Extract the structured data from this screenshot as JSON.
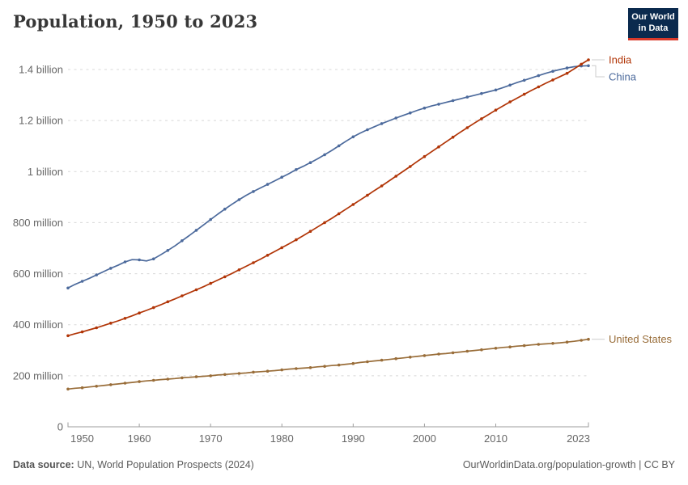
{
  "header": {
    "title": "Population, 1950 to 2023",
    "logo": {
      "line1": "Our World",
      "line2": "in Data",
      "bg_color": "#0b2a4e",
      "bar_color": "#d93a2b"
    }
  },
  "footer": {
    "source_label": "Data source:",
    "source_rest": " UN, World Population Prospects (2024)",
    "attribution": "OurWorldinData.org/population-growth | CC BY"
  },
  "chart_data": {
    "type": "line",
    "title": "Population, 1950 to 2023",
    "unit": "people (millions)",
    "x_start": 1950,
    "x_end": 2023,
    "x_interval": 1,
    "x_ticks": [
      1950,
      1960,
      1970,
      1980,
      1990,
      2000,
      2010,
      2023
    ],
    "y_ticks": [
      {
        "value": 0,
        "label": "0"
      },
      {
        "value": 200,
        "label": "200 million"
      },
      {
        "value": 400,
        "label": "400 million"
      },
      {
        "value": 600,
        "label": "600 million"
      },
      {
        "value": 800,
        "label": "800 million"
      },
      {
        "value": 1000,
        "label": "1 billion"
      },
      {
        "value": 1200,
        "label": "1.2 billion"
      },
      {
        "value": 1400,
        "label": "1.4 billion"
      }
    ],
    "ylim": [
      0,
      1450
    ],
    "grid": "dashed-horizontal",
    "legend_position": "right-of-line-ends",
    "series": [
      {
        "name": "India",
        "color": "#b13507",
        "values": [
          357,
          365,
          372,
          380,
          388,
          397,
          406,
          415,
          425,
          435,
          446,
          456,
          467,
          478,
          490,
          501,
          513,
          525,
          537,
          549,
          562,
          575,
          588,
          601,
          615,
          629,
          643,
          657,
          672,
          687,
          702,
          717,
          733,
          749,
          766,
          783,
          800,
          817,
          835,
          853,
          871,
          889,
          907,
          926,
          944,
          963,
          982,
          1001,
          1020,
          1040,
          1059,
          1078,
          1097,
          1116,
          1135,
          1154,
          1172,
          1190,
          1207,
          1224,
          1241,
          1257,
          1273,
          1288,
          1303,
          1318,
          1332,
          1346,
          1359,
          1372,
          1385,
          1403,
          1421,
          1438
        ]
      },
      {
        "name": "China",
        "color": "#4c6a9c",
        "values": [
          544,
          558,
          570,
          582,
          595,
          608,
          621,
          633,
          646,
          655,
          654,
          650,
          658,
          674,
          691,
          709,
          729,
          749,
          770,
          791,
          812,
          833,
          853,
          872,
          890,
          907,
          922,
          936,
          950,
          964,
          978,
          992,
          1008,
          1021,
          1035,
          1050,
          1066,
          1083,
          1101,
          1119,
          1136,
          1151,
          1164,
          1176,
          1188,
          1199,
          1210,
          1220,
          1230,
          1240,
          1249,
          1257,
          1264,
          1271,
          1278,
          1285,
          1292,
          1299,
          1306,
          1313,
          1320,
          1329,
          1339,
          1349,
          1358,
          1367,
          1376,
          1385,
          1393,
          1400,
          1406,
          1411,
          1414,
          1415
        ]
      },
      {
        "name": "United States",
        "color": "#996d39",
        "values": [
          148,
          151,
          153,
          156,
          159,
          162,
          165,
          168,
          171,
          174,
          177,
          180,
          182,
          185,
          187,
          189,
          192,
          194,
          196,
          198,
          200,
          203,
          205,
          207,
          209,
          211,
          214,
          216,
          218,
          220,
          223,
          226,
          228,
          230,
          232,
          235,
          237,
          240,
          242,
          245,
          248,
          252,
          255,
          258,
          261,
          264,
          267,
          270,
          273,
          276,
          279,
          282,
          285,
          287,
          290,
          293,
          296,
          299,
          302,
          305,
          308,
          311,
          313,
          316,
          318,
          321,
          323,
          325,
          327,
          329,
          332,
          335,
          339,
          343
        ]
      }
    ]
  },
  "colors": {
    "grid": "#d8d8d8",
    "axis": "#9e9e9e",
    "tick_label": "#666666",
    "legend_connector": "#cccccc",
    "title": "#373737"
  }
}
